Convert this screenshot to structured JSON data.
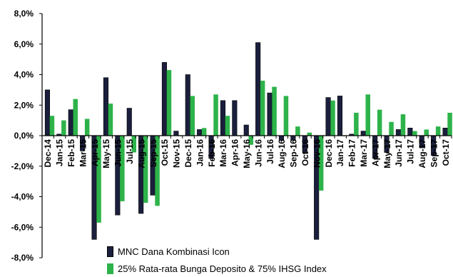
{
  "chart_data": {
    "type": "bar",
    "title": "",
    "xlabel": "",
    "ylabel": "",
    "ylim": [
      -8,
      8
    ],
    "y_ticks": [
      "8,0%",
      "6,0%",
      "4,0%",
      "2,0%",
      "0,0%",
      "-2,0%",
      "-4,0%",
      "-6,0%",
      "-8,0%"
    ],
    "grid": false,
    "legend_position": "bottom",
    "categories": [
      "Dec-14",
      "Jan-15",
      "Feb-15",
      "Mar-15",
      "Apr-15",
      "May-15",
      "Jun-15",
      "Jul-15",
      "Aug-15",
      "Sep-15",
      "Oct-15",
      "Nov-15",
      "Dec-15",
      "Jan-16",
      "Feb-16",
      "Mar-16",
      "Apr-16",
      "May-16",
      "Jun-16",
      "Jul-16",
      "Aug-16",
      "Sep-16",
      "Oct-16",
      "Nov-16",
      "Dec-16",
      "Jan-17",
      "Feb-17",
      "Mar-17",
      "Apr-17",
      "May-17",
      "Jun-17",
      "Jul-17",
      "Aug-17",
      "Sep-17",
      "Oct-17"
    ],
    "series": [
      {
        "name": "MNC Dana Kombinasi Icon",
        "color": "#1b1f3d",
        "values": [
          3.0,
          0.1,
          1.7,
          -1.0,
          -6.8,
          3.8,
          -5.2,
          1.8,
          -5.1,
          -3.9,
          4.8,
          0.3,
          4.0,
          0.4,
          -1.5,
          2.3,
          2.3,
          0.7,
          6.1,
          2.8,
          -0.3,
          -0.3,
          -1.1,
          -6.8,
          2.5,
          2.6,
          0.1,
          0.3,
          -1.5,
          -1.1,
          0.4,
          0.5,
          -0.8,
          -1.3,
          0.5
        ]
      },
      {
        "name": "25% Rata-rata Bunga Deposito & 75% IHSG Index",
        "color": "#2db34a",
        "values": [
          1.3,
          1.0,
          2.4,
          1.1,
          -5.7,
          2.1,
          -4.3,
          -1.1,
          -4.4,
          -4.6,
          4.3,
          0.0,
          2.6,
          0.5,
          2.7,
          1.3,
          0.0,
          -0.6,
          3.6,
          3.2,
          2.6,
          0.6,
          0.2,
          -3.6,
          2.3,
          0.0,
          1.5,
          2.7,
          1.7,
          0.9,
          1.4,
          0.3,
          0.4,
          0.6,
          1.5
        ]
      }
    ]
  }
}
